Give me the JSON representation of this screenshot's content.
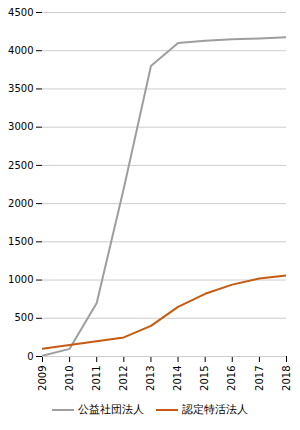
{
  "chart_data": {
    "type": "line",
    "x": [
      2009,
      2010,
      2011,
      2012,
      2013,
      2014,
      2015,
      2016,
      2017,
      2018
    ],
    "series": [
      {
        "name": "公益社団法人",
        "color": "#9e9e9e",
        "values": [
          10,
          100,
          700,
          2200,
          3800,
          4100,
          4130,
          4150,
          4160,
          4175
        ]
      },
      {
        "name": "認定特活法人",
        "color": "#c55a11",
        "values": [
          100,
          150,
          200,
          250,
          400,
          650,
          820,
          940,
          1020,
          1060
        ]
      }
    ],
    "xlim": [
      2009,
      2018
    ],
    "xticks": [
      2009,
      2010,
      2011,
      2012,
      2013,
      2014,
      2015,
      2016,
      2017,
      2018
    ],
    "ylim": [
      0,
      4500
    ],
    "yticks": [
      0,
      500,
      1000,
      1500,
      2000,
      2500,
      3000,
      3500,
      4000,
      4500
    ],
    "grid": true,
    "legend": "bottom"
  }
}
